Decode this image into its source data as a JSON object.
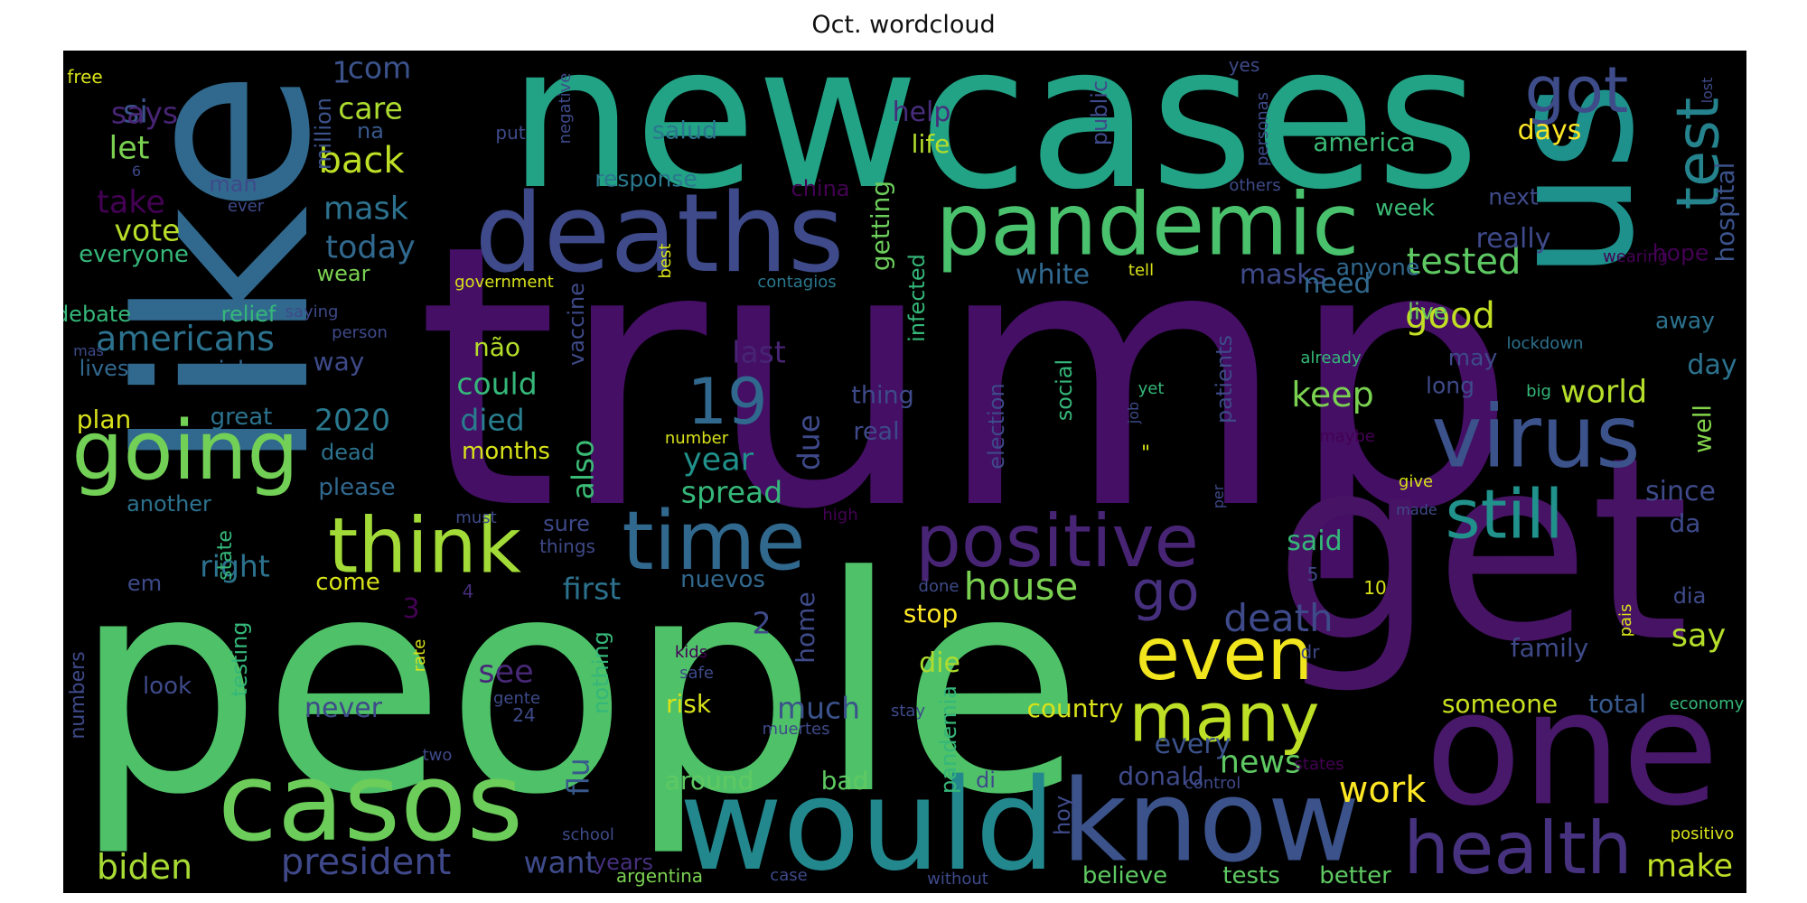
{
  "title": "Oct. wordcloud",
  "words": [
    {
      "text": "trump",
      "color": "#440f64"
    },
    {
      "text": "people",
      "color": "#4fc269"
    },
    {
      "text": "newcases",
      "color": "#23a386"
    },
    {
      "text": "like",
      "color": "#31698e"
    },
    {
      "text": "get",
      "color": "#471365"
    },
    {
      "text": "us",
      "color": "#1f918d"
    },
    {
      "text": "one",
      "color": "#48186a"
    },
    {
      "text": "would",
      "color": "#23888e"
    },
    {
      "text": "deaths",
      "color": "#3e4a89"
    },
    {
      "text": "pandemic",
      "color": "#4ac16d"
    },
    {
      "text": "know",
      "color": "#3b528b"
    },
    {
      "text": "casos",
      "color": "#6ccd5a"
    },
    {
      "text": "virus",
      "color": "#3b528b"
    },
    {
      "text": "going",
      "color": "#73d056"
    },
    {
      "text": "think",
      "color": "#a2da37"
    },
    {
      "text": "time",
      "color": "#31688e"
    },
    {
      "text": "positive",
      "color": "#482475"
    },
    {
      "text": "even",
      "color": "#f1e51d"
    },
    {
      "text": "health",
      "color": "#46327e"
    },
    {
      "text": "still",
      "color": "#21918c"
    },
    {
      "text": "many",
      "color": "#bddf26"
    },
    {
      "text": "got",
      "color": "#3e4c8a"
    },
    {
      "text": "test",
      "color": "#25838e"
    },
    {
      "text": "go",
      "color": "#46307e"
    },
    {
      "text": "19",
      "color": "#31688e"
    },
    {
      "text": "president",
      "color": "#3f4889"
    },
    {
      "text": "biden",
      "color": "#a8db34"
    },
    {
      "text": "house",
      "color": "#7ad151"
    },
    {
      "text": "death",
      "color": "#3e4a89"
    },
    {
      "text": "tested",
      "color": "#5ec962"
    },
    {
      "text": "americans",
      "color": "#2c728e"
    },
    {
      "text": "keep",
      "color": "#7ad151"
    },
    {
      "text": "good",
      "color": "#c2df23"
    },
    {
      "text": "say",
      "color": "#b5de2b"
    },
    {
      "text": "work",
      "color": "#fde725"
    },
    {
      "text": "news",
      "color": "#5ec962"
    },
    {
      "text": "make",
      "color": "#bddf26"
    },
    {
      "text": "world",
      "color": "#b5de2b"
    },
    {
      "text": "back",
      "color": "#bddf26"
    },
    {
      "text": "take",
      "color": "#440154"
    },
    {
      "text": "si",
      "color": "#3b528b"
    },
    {
      "text": "let",
      "color": "#7ad151"
    },
    {
      "text": "vote",
      "color": "#b8de29"
    },
    {
      "text": "mask",
      "color": "#2c728e"
    },
    {
      "text": "today",
      "color": "#31688e"
    },
    {
      "text": "care",
      "color": "#addc30"
    },
    {
      "text": "com",
      "color": "#3b528b"
    },
    {
      "text": "1",
      "color": "#3b528b"
    },
    {
      "text": "says",
      "color": "#482475"
    },
    {
      "text": "could",
      "color": "#35b779"
    },
    {
      "text": "died",
      "color": "#287d8e"
    },
    {
      "text": "year",
      "color": "#21918c"
    },
    {
      "text": "first",
      "color": "#2c728e"
    },
    {
      "text": "2020",
      "color": "#2a788e"
    },
    {
      "text": "right",
      "color": "#2c728e"
    },
    {
      "text": "spread",
      "color": "#35b779"
    },
    {
      "text": "much",
      "color": "#3b528b"
    },
    {
      "text": "never",
      "color": "#3e4a89"
    },
    {
      "text": "see",
      "color": "#482878"
    },
    {
      "text": "also",
      "color": "#3aba76"
    },
    {
      "text": "last",
      "color": "#482475"
    },
    {
      "text": "getting",
      "color": "#6ccd5a"
    },
    {
      "text": "due",
      "color": "#3e4989"
    },
    {
      "text": "flu",
      "color": "#38598c"
    },
    {
      "text": "want",
      "color": "#3e4a89"
    },
    {
      "text": "masks",
      "color": "#3e4a89"
    },
    {
      "text": "really",
      "color": "#3e4a89"
    },
    {
      "text": "white",
      "color": "#31688e"
    },
    {
      "text": "need",
      "color": "#31688e"
    },
    {
      "text": "said",
      "color": "#35b779"
    },
    {
      "text": "days",
      "color": "#fde725"
    },
    {
      "text": "hospital",
      "color": "#3b528b"
    },
    {
      "text": "well",
      "color": "#84d44b"
    },
    {
      "text": "day",
      "color": "#2c728e"
    },
    {
      "text": "since",
      "color": "#3e4a89"
    },
    {
      "text": "da",
      "color": "#3e4a89"
    },
    {
      "text": "help",
      "color": "#472d7b"
    },
    {
      "text": "life",
      "color": "#b5de2b"
    },
    {
      "text": "america",
      "color": "#3aba76"
    },
    {
      "text": "salud",
      "color": "#2a788e"
    },
    {
      "text": "response",
      "color": "#2a788e"
    },
    {
      "text": "every",
      "color": "#3b528b"
    },
    {
      "text": "donald",
      "color": "#3e4a89"
    },
    {
      "text": "country",
      "color": "#d8e219"
    },
    {
      "text": "someone",
      "color": "#c8e020"
    },
    {
      "text": "total",
      "color": "#38598c"
    },
    {
      "text": "die",
      "color": "#addc30"
    },
    {
      "text": "home",
      "color": "#3e4a89"
    },
    {
      "text": "stop",
      "color": "#fde725"
    },
    {
      "text": "risk",
      "color": "#d8e219"
    },
    {
      "text": "around",
      "color": "#5ec962"
    },
    {
      "text": "bad",
      "color": "#5ec962"
    },
    {
      "text": "family",
      "color": "#3e4a89"
    },
    {
      "text": "better",
      "color": "#5ec962"
    },
    {
      "text": "tests",
      "color": "#5ec962"
    },
    {
      "text": "believe",
      "color": "#5ec962"
    },
    {
      "text": "years",
      "color": "#46307e"
    },
    {
      "text": "argentina",
      "color": "#7ad151"
    },
    {
      "text": "hope",
      "color": "#440154"
    },
    {
      "text": "anyone",
      "color": "#31688e"
    },
    {
      "text": "live",
      "color": "#6ccd5a"
    },
    {
      "text": "away",
      "color": "#2c728e"
    },
    {
      "text": "may",
      "color": "#3e4a89"
    },
    {
      "text": "long",
      "color": "#3e4a89"
    },
    {
      "text": "next",
      "color": "#3e4a89"
    },
    {
      "text": "week",
      "color": "#3aba76"
    },
    {
      "text": "thing",
      "color": "#3e4a89"
    },
    {
      "text": "real",
      "color": "#3e4a89"
    },
    {
      "text": "months",
      "color": "#d8e219"
    },
    {
      "text": "não",
      "color": "#b5de2b"
    },
    {
      "text": "way",
      "color": "#3e4a89"
    },
    {
      "text": "plan",
      "color": "#d8e219"
    },
    {
      "text": "great",
      "color": "#2c728e"
    },
    {
      "text": "sick",
      "color": "#31688e"
    },
    {
      "text": "lives",
      "color": "#31688e"
    },
    {
      "text": "debate",
      "color": "#35b779"
    },
    {
      "text": "relief",
      "color": "#35b779"
    },
    {
      "text": "everyone",
      "color": "#35b779"
    },
    {
      "text": "wear",
      "color": "#7ad151"
    },
    {
      "text": "man",
      "color": "#3e4a89"
    },
    {
      "text": "million",
      "color": "#3b528b"
    },
    {
      "text": "na",
      "color": "#38598c"
    },
    {
      "text": "please",
      "color": "#31688e"
    },
    {
      "text": "another",
      "color": "#2c728e"
    },
    {
      "text": "dead",
      "color": "#2c728e"
    },
    {
      "text": "come",
      "color": "#d8e219"
    },
    {
      "text": "em",
      "color": "#3e4a89"
    },
    {
      "text": "look",
      "color": "#3e4a89"
    },
    {
      "text": "testing",
      "color": "#35b779"
    },
    {
      "text": "state",
      "color": "#35b779"
    },
    {
      "text": "numbers",
      "color": "#3e4a89"
    },
    {
      "text": "nuevos",
      "color": "#31688e"
    },
    {
      "text": "sure",
      "color": "#3e4a89"
    },
    {
      "text": "things",
      "color": "#3e4a89"
    },
    {
      "text": "nothing",
      "color": "#35b779"
    },
    {
      "text": "2",
      "color": "#3e4a89"
    },
    {
      "text": "3",
      "color": "#440154"
    },
    {
      "text": "4",
      "color": "#472d7b"
    },
    {
      "text": "5",
      "color": "#3e4a89"
    },
    {
      "text": "10",
      "color": "#d8e219"
    },
    {
      "text": "24",
      "color": "#3e4a89"
    },
    {
      "text": "6",
      "color": "#3e4a89"
    },
    {
      "text": "free",
      "color": "#d8e219"
    },
    {
      "text": "put",
      "color": "#3e4a89"
    },
    {
      "text": "negative",
      "color": "#3e4a89"
    },
    {
      "text": "ever",
      "color": "#3e4a89"
    },
    {
      "text": "china",
      "color": "#440154"
    },
    {
      "text": "public",
      "color": "#3e4a89"
    },
    {
      "text": "infected",
      "color": "#35b779"
    },
    {
      "text": "vaccine",
      "color": "#3e4a89"
    },
    {
      "text": "government",
      "color": "#d8e219"
    },
    {
      "text": "contagios",
      "color": "#2a788e"
    },
    {
      "text": "best",
      "color": "#d8e219"
    },
    {
      "text": "tell",
      "color": "#d8e219"
    },
    {
      "text": "saying",
      "color": "#3e4a89"
    },
    {
      "text": "person",
      "color": "#3e4a89"
    },
    {
      "text": "mas",
      "color": "#3e4a89"
    },
    {
      "text": "wearing",
      "color": "#440154"
    },
    {
      "text": "yes",
      "color": "#3e4a89"
    },
    {
      "text": "personas",
      "color": "#3e4a89"
    },
    {
      "text": "others",
      "color": "#3e4a89"
    },
    {
      "text": "lost",
      "color": "#3e4a89"
    },
    {
      "text": "already",
      "color": "#35b779"
    },
    {
      "text": "lockdown",
      "color": "#2c728e"
    },
    {
      "text": "big",
      "color": "#35b779"
    },
    {
      "text": "maybe",
      "color": "#440154"
    },
    {
      "text": "give",
      "color": "#d8e219"
    },
    {
      "text": "made",
      "color": "#3e4a89"
    },
    {
      "text": "job",
      "color": "#3e4a89"
    },
    {
      "text": "yet",
      "color": "#35b779"
    },
    {
      "text": "patients",
      "color": "#3e4a89"
    },
    {
      "text": "election",
      "color": "#3e4a89"
    },
    {
      "text": "social",
      "color": "#35b779"
    },
    {
      "text": "pandemia",
      "color": "#35b779"
    },
    {
      "text": "hoy",
      "color": "#3e4a89"
    },
    {
      "text": "di",
      "color": "#3e4a89"
    },
    {
      "text": "control",
      "color": "#3e4a89"
    },
    {
      "text": "states",
      "color": "#440154"
    },
    {
      "text": "dr",
      "color": "#3e4a89"
    },
    {
      "text": "pais",
      "color": "#d8e219"
    },
    {
      "text": "dia",
      "color": "#3e4a89"
    },
    {
      "text": "economy",
      "color": "#35b779"
    },
    {
      "text": "positivo",
      "color": "#d8e219"
    },
    {
      "text": "number",
      "color": "#d8e219"
    },
    {
      "text": "must",
      "color": "#3e4a89"
    },
    {
      "text": "high",
      "color": "#440154"
    },
    {
      "text": "done",
      "color": "#3e4a89"
    },
    {
      "text": "kids",
      "color": "#440154"
    },
    {
      "text": "safe",
      "color": "#3e4a89"
    },
    {
      "text": "gente",
      "color": "#3e4a89"
    },
    {
      "text": "muertes",
      "color": "#3e4a89"
    },
    {
      "text": "stay",
      "color": "#3e4a89"
    },
    {
      "text": "rate",
      "color": "#d8e219"
    },
    {
      "text": "two",
      "color": "#3e4a89"
    },
    {
      "text": "school",
      "color": "#3e4a89"
    },
    {
      "text": "case",
      "color": "#3e4a89"
    },
    {
      "text": "without",
      "color": "#3e4a89"
    },
    {
      "text": "per",
      "color": "#3e4a89"
    },
    {
      "text": "\"",
      "color": "#d8e219"
    }
  ]
}
